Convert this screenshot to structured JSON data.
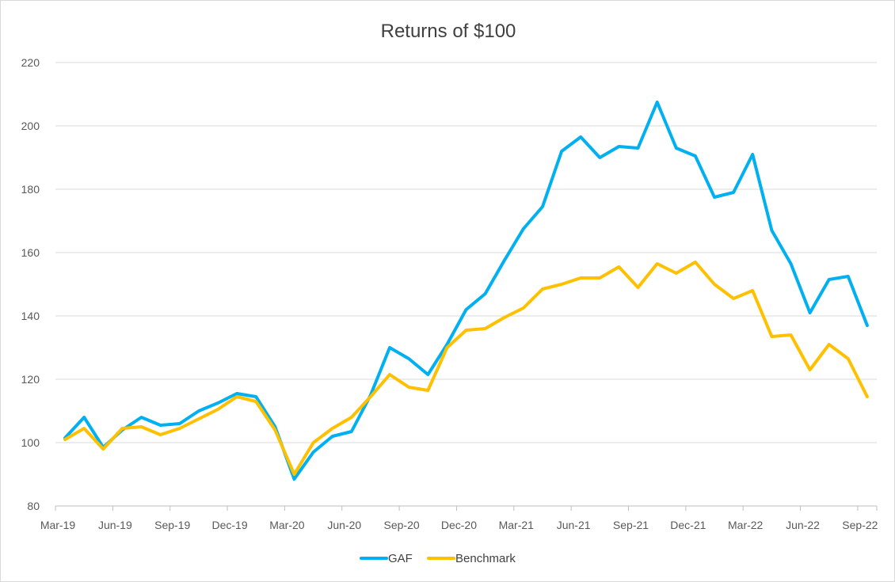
{
  "chart_data": {
    "type": "line",
    "title": "Returns of $100",
    "xlabel": "",
    "ylabel": "",
    "ylim": [
      80,
      220
    ],
    "yticks": [
      80,
      100,
      120,
      140,
      160,
      180,
      200,
      220
    ],
    "x": [
      "Mar-19",
      "Apr-19",
      "May-19",
      "Jun-19",
      "Jul-19",
      "Aug-19",
      "Sep-19",
      "Oct-19",
      "Nov-19",
      "Dec-19",
      "Jan-20",
      "Feb-20",
      "Mar-20",
      "Apr-20",
      "May-20",
      "Jun-20",
      "Jul-20",
      "Aug-20",
      "Sep-20",
      "Oct-20",
      "Nov-20",
      "Dec-20",
      "Jan-21",
      "Feb-21",
      "Mar-21",
      "Apr-21",
      "May-21",
      "Jun-21",
      "Jul-21",
      "Aug-21",
      "Sep-21",
      "Oct-21",
      "Nov-21",
      "Dec-21",
      "Jan-22",
      "Feb-22",
      "Mar-22",
      "Apr-22",
      "May-22",
      "Jun-22",
      "Jul-22",
      "Aug-22",
      "Sep-22"
    ],
    "xtick_labels": [
      "Mar-19",
      "Jun-19",
      "Sep-19",
      "Dec-19",
      "Mar-20",
      "Jun-20",
      "Sep-20",
      "Dec-20",
      "Mar-21",
      "Jun-21",
      "Sep-21",
      "Dec-21",
      "Mar-22",
      "Jun-22",
      "Sep-22"
    ],
    "grid": true,
    "legend": "bottom",
    "series": [
      {
        "name": "GAF",
        "color": "#00b0f0",
        "values": [
          101.5,
          108,
          98.5,
          104,
          108,
          105.5,
          106,
          110,
          112.5,
          115.5,
          114.5,
          105,
          88.5,
          97,
          102,
          103.5,
          115,
          130,
          126.5,
          121.5,
          131,
          142,
          147,
          157.5,
          167.5,
          174.5,
          192,
          196.5,
          190,
          193.5,
          193,
          207.5,
          193,
          190.5,
          177.5,
          179,
          191,
          167,
          156.5,
          141,
          151.5,
          152.5,
          137
        ]
      },
      {
        "name": "Benchmark",
        "color": "#ffc000",
        "values": [
          101,
          104.5,
          98,
          104.5,
          105,
          102.5,
          104.5,
          107.5,
          110.5,
          114.5,
          113,
          104,
          90,
          100,
          104.5,
          108,
          114.5,
          121.5,
          117.5,
          116.5,
          130,
          135.5,
          136,
          139.5,
          142.5,
          148.5,
          150,
          152,
          152,
          155.5,
          149,
          156.5,
          153.5,
          157,
          150,
          145.5,
          148,
          133.5,
          134,
          123,
          131,
          126.5,
          114.5
        ]
      }
    ]
  }
}
